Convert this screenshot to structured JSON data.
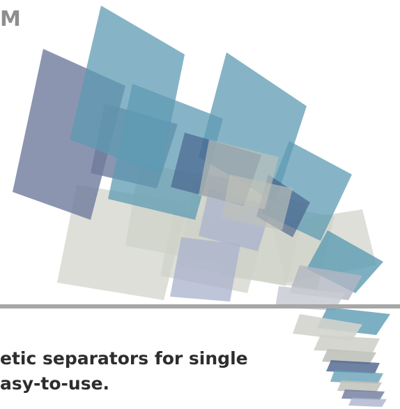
{
  "brand": {
    "logo_fragment": "M"
  },
  "tagline": {
    "line1": "etic separators for single",
    "line2": "asy-to-use."
  },
  "artwork": {
    "icon": "scattered-panels-graphic",
    "colors": {
      "teal": "#5e9db3",
      "slate": "#6c7b9e",
      "navy": "#3f5a87",
      "grey": "#d2d4cc",
      "lavender": "#b0b7d0"
    }
  }
}
